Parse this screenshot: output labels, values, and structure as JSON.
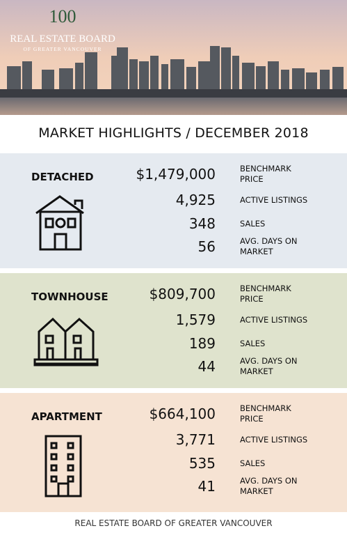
{
  "header": {
    "logo_number": "100",
    "logo_title": "REAL ESTATE BOARD",
    "logo_subtitle": "OF GREATER VANCOUVER"
  },
  "title": "MARKET HIGHLIGHTS / DECEMBER 2018",
  "sections": [
    {
      "name": "DETACHED",
      "stats": [
        {
          "value": "$1,479,000",
          "label_lines": [
            "BENCHMARK",
            "PRICE"
          ]
        },
        {
          "value": "4,925",
          "label_lines": [
            "ACTIVE LISTINGS"
          ]
        },
        {
          "value": "348",
          "label_lines": [
            "SALES"
          ]
        },
        {
          "value": "56",
          "label_lines": [
            "AVG. DAYS ON",
            "MARKET"
          ]
        }
      ]
    },
    {
      "name": "TOWNHOUSE",
      "stats": [
        {
          "value": "$809,700",
          "label_lines": [
            "BENCHMARK",
            "PRICE"
          ]
        },
        {
          "value": "1,579",
          "label_lines": [
            "ACTIVE LISTINGS"
          ]
        },
        {
          "value": "189",
          "label_lines": [
            "SALES"
          ]
        },
        {
          "value": "44",
          "label_lines": [
            "AVG. DAYS ON",
            "MARKET"
          ]
        }
      ]
    },
    {
      "name": "APARTMENT",
      "stats": [
        {
          "value": "$664,100",
          "label_lines": [
            "BENCHMARK",
            "PRICE"
          ]
        },
        {
          "value": "3,771",
          "label_lines": [
            "ACTIVE LISTINGS"
          ]
        },
        {
          "value": "535",
          "label_lines": [
            "SALES"
          ]
        },
        {
          "value": "41",
          "label_lines": [
            "AVG. DAYS ON",
            "MARKET"
          ]
        }
      ]
    }
  ],
  "footer": "REAL ESTATE BOARD OF GREATER VANCOUVER"
}
